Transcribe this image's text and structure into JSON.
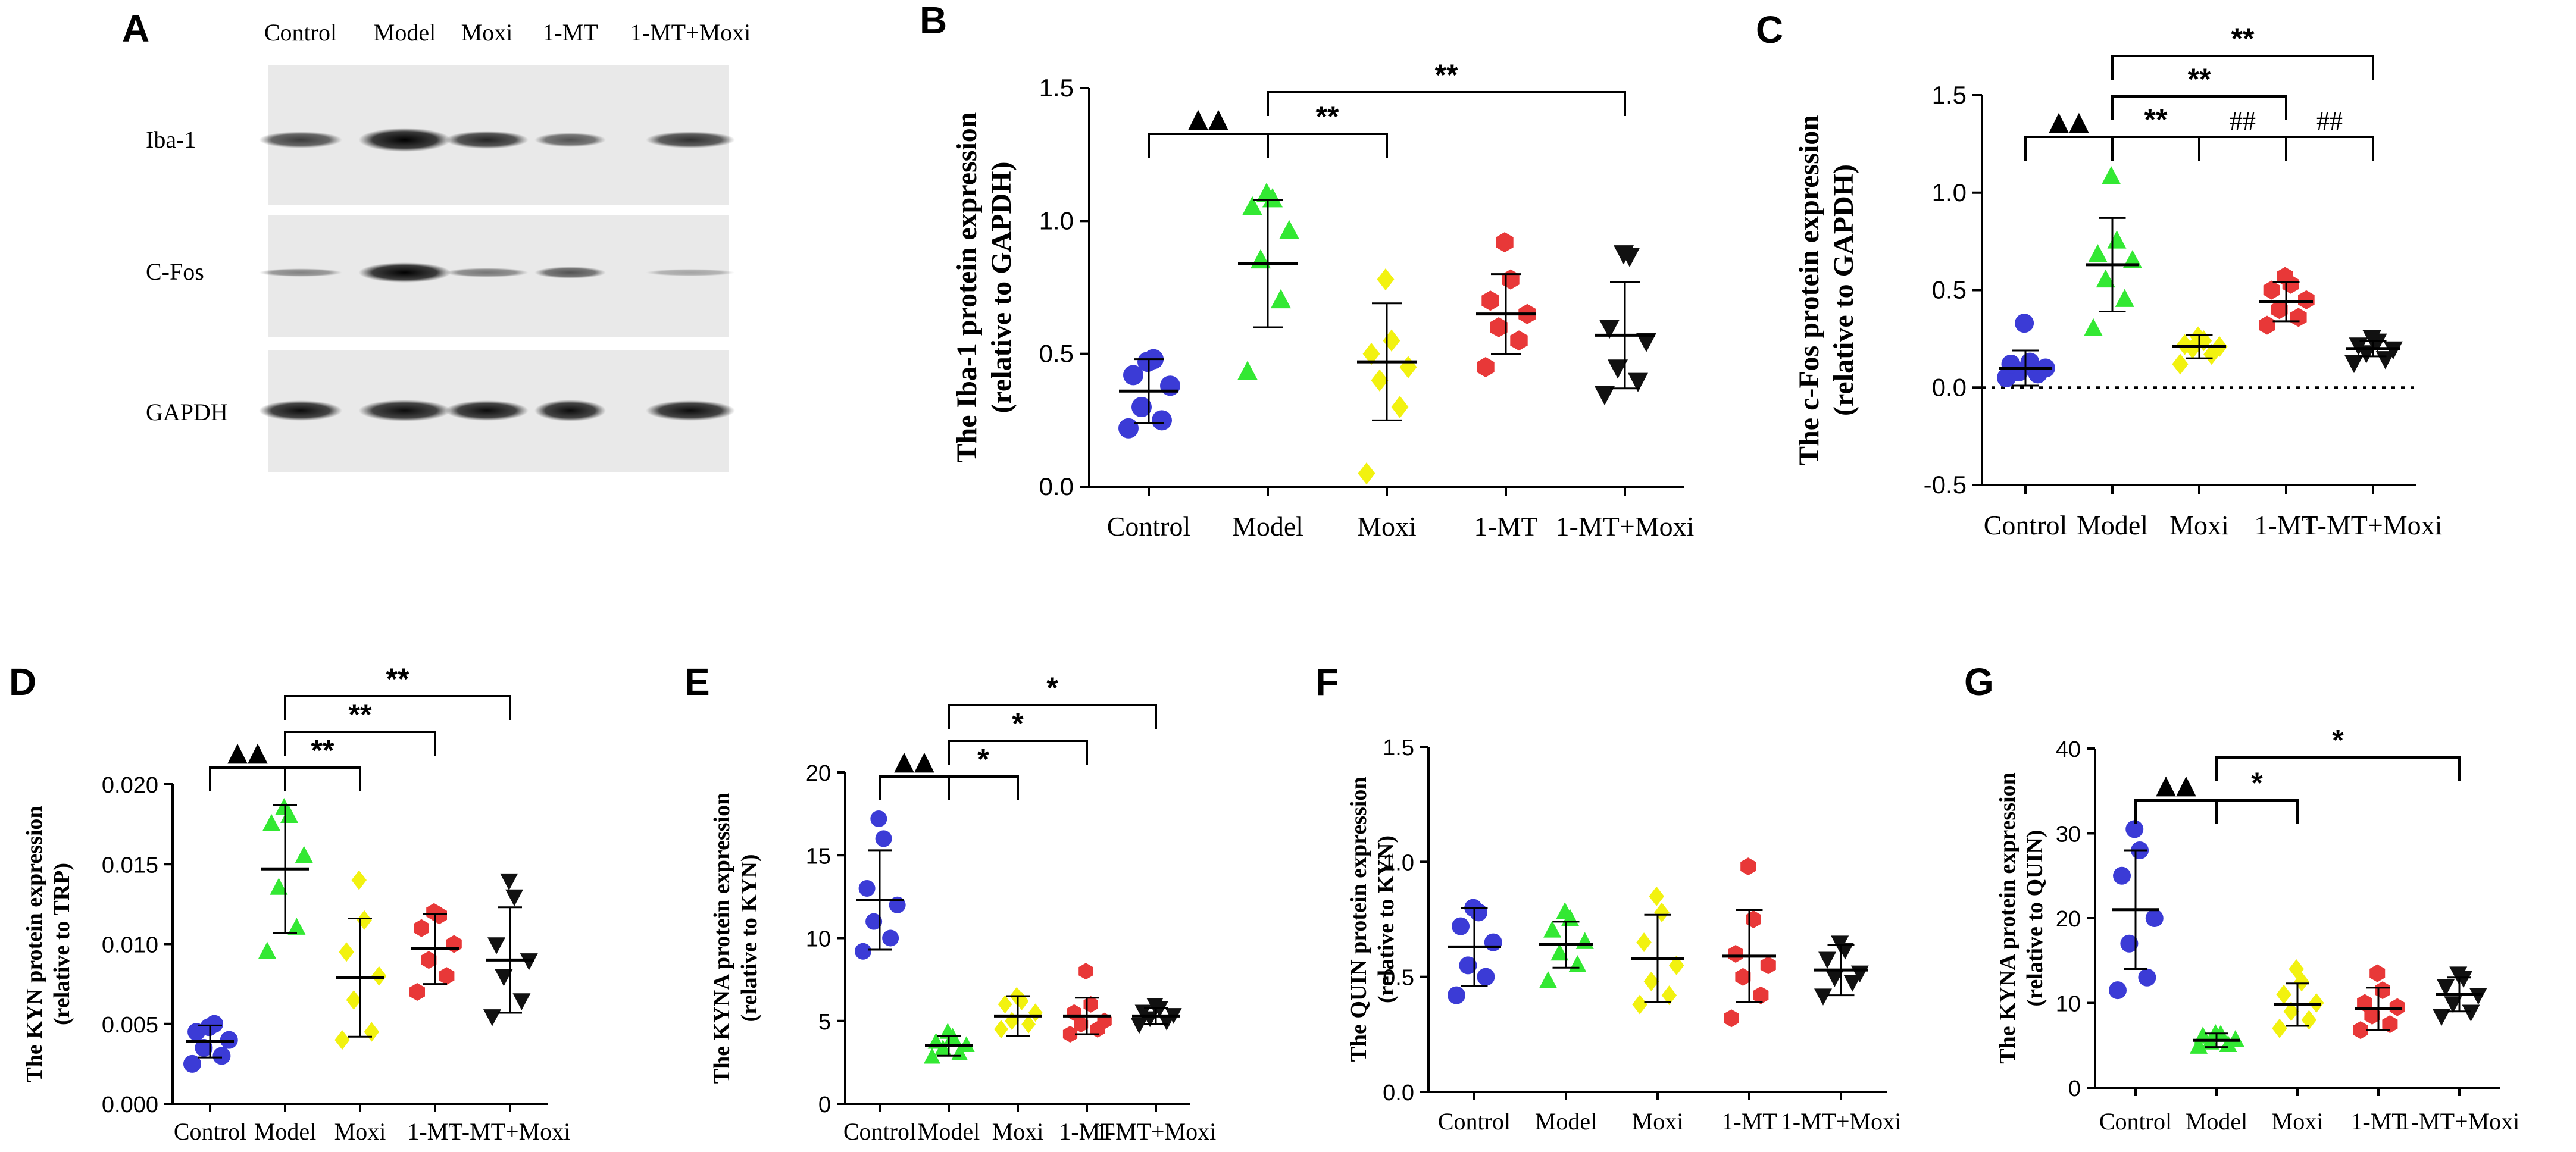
{
  "colors": {
    "Control": "#3b3bd6",
    "Model": "#33e833",
    "Moxi": "#f2f20f",
    "1-MT": "#e83838",
    "1-MT+Moxi": "#111111"
  },
  "markers": {
    "Control": "circle",
    "Model": "triangle-up",
    "Moxi": "diamond",
    "1-MT": "hexagon",
    "1-MT+Moxi": "triangle-down"
  },
  "panelA": {
    "label": "A",
    "lanes": [
      "Control",
      "Model",
      "Moxi",
      "1-MT",
      "1-MT+Moxi"
    ],
    "rows": [
      "Iba-1",
      "C-Fos",
      "GAPDH"
    ]
  },
  "chart_data": [
    {
      "id": "B",
      "type": "scatter",
      "label": "B",
      "title": "",
      "ylabel": [
        "The Iba-1 protein expression",
        "(relative to GAPDH)"
      ],
      "categories": [
        "Control",
        "Model",
        "Moxi",
        "1-MT",
        "1-MT+Moxi"
      ],
      "ylim": [
        0,
        1.5
      ],
      "yticks": [
        0.0,
        0.5,
        1.0,
        1.5
      ],
      "ytick_labels": [
        "0.0",
        "0.5",
        "1.0",
        "1.5"
      ],
      "dotted_zero": false,
      "means": [
        0.36,
        0.84,
        0.47,
        0.65,
        0.57
      ],
      "sd": [
        0.12,
        0.24,
        0.22,
        0.15,
        0.2
      ],
      "points": [
        [
          0.22,
          0.25,
          0.3,
          0.38,
          0.42,
          0.48,
          0.47
        ],
        [
          0.43,
          0.7,
          0.85,
          0.96,
          1.05,
          1.08,
          1.1
        ],
        [
          0.05,
          0.3,
          0.4,
          0.45,
          0.5,
          0.55,
          0.78
        ],
        [
          0.45,
          0.55,
          0.6,
          0.65,
          0.7,
          0.78,
          0.92
        ],
        [
          0.35,
          0.4,
          0.45,
          0.55,
          0.6,
          0.87,
          0.88
        ]
      ],
      "annotations": [
        {
          "from": 0,
          "to": 1,
          "level": 0,
          "text": "▲▲"
        },
        {
          "from": 1,
          "to": 2,
          "level": 0,
          "text": "**"
        },
        {
          "from": 1,
          "to": 4,
          "level": 1,
          "text": "**"
        }
      ]
    },
    {
      "id": "C",
      "type": "scatter",
      "label": "C",
      "title": "",
      "ylabel": [
        "The c-Fos protein expression",
        "(relative to GAPDH)"
      ],
      "categories": [
        "Control",
        "Model",
        "Moxi",
        "1-MT",
        "1-MT+Moxi"
      ],
      "ylim": [
        -0.5,
        1.5
      ],
      "yticks": [
        -0.5,
        0.0,
        0.5,
        1.0,
        1.5
      ],
      "ytick_labels": [
        "-0.5",
        "0.0",
        "0.5",
        "1.0",
        "1.5"
      ],
      "dotted_zero": true,
      "means": [
        0.1,
        0.63,
        0.21,
        0.44,
        0.2
      ],
      "sd": [
        0.09,
        0.24,
        0.06,
        0.1,
        0.04
      ],
      "points": [
        [
          0.05,
          0.07,
          0.08,
          0.1,
          0.12,
          0.13,
          0.33
        ],
        [
          0.3,
          0.45,
          0.55,
          0.65,
          0.68,
          0.75,
          1.08
        ],
        [
          0.12,
          0.17,
          0.2,
          0.21,
          0.22,
          0.24,
          0.26
        ],
        [
          0.32,
          0.36,
          0.4,
          0.45,
          0.5,
          0.53,
          0.57
        ],
        [
          0.13,
          0.15,
          0.18,
          0.2,
          0.22,
          0.24,
          0.26
        ]
      ],
      "annotations": [
        {
          "from": 0,
          "to": 1,
          "level": 0,
          "text": "▲▲"
        },
        {
          "from": 1,
          "to": 2,
          "level": 0,
          "text": "**"
        },
        {
          "from": 2,
          "to": 3,
          "level": 0,
          "text": "##"
        },
        {
          "from": 3,
          "to": 4,
          "level": 0,
          "text": "##"
        },
        {
          "from": 1,
          "to": 3,
          "level": 1,
          "text": "**"
        },
        {
          "from": 1,
          "to": 4,
          "level": 2,
          "text": "**"
        }
      ]
    },
    {
      "id": "D",
      "type": "scatter",
      "label": "D",
      "title": "",
      "ylabel": [
        "The KYN protein expression",
        "(relative to TRP)"
      ],
      "categories": [
        "Control",
        "Model",
        "Moxi",
        "1-MT",
        "1-MT+Moxi"
      ],
      "ylim": [
        0,
        0.02
      ],
      "yticks": [
        0,
        0.005,
        0.01,
        0.015,
        0.02
      ],
      "ytick_labels": [
        "0.000",
        "0.005",
        "0.010",
        "0.015",
        "0.020"
      ],
      "dotted_zero": false,
      "means": [
        0.0039,
        0.0147,
        0.0079,
        0.0097,
        0.009
      ],
      "sd": [
        0.001,
        0.004,
        0.0037,
        0.0022,
        0.0033
      ],
      "points": [
        [
          0.0025,
          0.003,
          0.0035,
          0.004,
          0.0045,
          0.005,
          0.0048
        ],
        [
          0.0095,
          0.011,
          0.0135,
          0.0155,
          0.0175,
          0.018,
          0.0185
        ],
        [
          0.004,
          0.0045,
          0.0065,
          0.008,
          0.0095,
          0.0115,
          0.014
        ],
        [
          0.007,
          0.008,
          0.009,
          0.01,
          0.011,
          0.0118,
          0.012
        ],
        [
          0.0055,
          0.0065,
          0.008,
          0.009,
          0.01,
          0.013,
          0.014
        ]
      ],
      "annotations": [
        {
          "from": 0,
          "to": 1,
          "level": 0,
          "text": "▲▲"
        },
        {
          "from": 1,
          "to": 2,
          "level": 0,
          "text": "**"
        },
        {
          "from": 1,
          "to": 3,
          "level": 1,
          "text": "**"
        },
        {
          "from": 1,
          "to": 4,
          "level": 2,
          "text": "**"
        }
      ]
    },
    {
      "id": "E",
      "type": "scatter",
      "label": "E",
      "title": "",
      "ylabel": [
        "The KYNA protein expression",
        "(relative to KYN)"
      ],
      "categories": [
        "Control",
        "Model",
        "Moxi",
        "1-MT",
        "1-MT+Moxi"
      ],
      "ylim": [
        0,
        20
      ],
      "yticks": [
        0,
        5,
        10,
        15,
        20
      ],
      "ytick_labels": [
        "0",
        "5",
        "10",
        "15",
        "20"
      ],
      "dotted_zero": false,
      "means": [
        12.3,
        3.5,
        5.3,
        5.3,
        5.3
      ],
      "sd": [
        3.0,
        0.6,
        1.2,
        1.1,
        0.5
      ],
      "points": [
        [
          9.2,
          10.0,
          11.0,
          12.0,
          13.0,
          16.0,
          17.2
        ],
        [
          2.8,
          3.0,
          3.3,
          3.5,
          3.7,
          4.0,
          4.3
        ],
        [
          4.5,
          4.8,
          5.0,
          5.5,
          6.0,
          6.2,
          6.5
        ],
        [
          4.2,
          4.5,
          4.8,
          5.0,
          5.5,
          6.0,
          8.0
        ],
        [
          4.8,
          5.0,
          5.2,
          5.4,
          5.6,
          5.8,
          6.0
        ]
      ],
      "annotations": [
        {
          "from": 0,
          "to": 1,
          "level": 0,
          "text": "▲▲"
        },
        {
          "from": 1,
          "to": 2,
          "level": 0,
          "text": "*"
        },
        {
          "from": 1,
          "to": 3,
          "level": 1,
          "text": "*"
        },
        {
          "from": 1,
          "to": 4,
          "level": 2,
          "text": "*"
        }
      ]
    },
    {
      "id": "F",
      "type": "scatter",
      "label": "F",
      "title": "",
      "ylabel": [
        "The QUIN protein expression",
        "(relative to KYN)"
      ],
      "categories": [
        "Control",
        "Model",
        "Moxi",
        "1-MT",
        "1-MT+Moxi"
      ],
      "ylim": [
        0,
        1.5
      ],
      "yticks": [
        0,
        0.5,
        1.0,
        1.5
      ],
      "ytick_labels": [
        "0.0",
        "0.5",
        "1.0",
        "1.5"
      ],
      "dotted_zero": false,
      "means": [
        0.63,
        0.64,
        0.58,
        0.59,
        0.53
      ],
      "sd": [
        0.17,
        0.1,
        0.19,
        0.2,
        0.11
      ],
      "points": [
        [
          0.42,
          0.5,
          0.55,
          0.65,
          0.72,
          0.78,
          0.8
        ],
        [
          0.48,
          0.55,
          0.6,
          0.65,
          0.7,
          0.75,
          0.78
        ],
        [
          0.38,
          0.42,
          0.48,
          0.55,
          0.65,
          0.78,
          0.85
        ],
        [
          0.32,
          0.42,
          0.5,
          0.55,
          0.6,
          0.75,
          0.98
        ],
        [
          0.42,
          0.48,
          0.5,
          0.52,
          0.58,
          0.62,
          0.65
        ]
      ],
      "annotations": []
    },
    {
      "id": "G",
      "type": "scatter",
      "label": "G",
      "title": "",
      "ylabel": [
        "The KYNA protein expression",
        "(relative to QUIN)"
      ],
      "categories": [
        "Control",
        "Model",
        "Moxi",
        "1-MT",
        "1-MT+Moxi"
      ],
      "ylim": [
        0,
        40
      ],
      "yticks": [
        0,
        10,
        20,
        30,
        40
      ],
      "ytick_labels": [
        "0",
        "10",
        "20",
        "30",
        "40"
      ],
      "dotted_zero": false,
      "means": [
        21.0,
        5.6,
        9.8,
        9.3,
        11.0
      ],
      "sd": [
        7.0,
        0.8,
        2.5,
        2.5,
        2.0
      ],
      "points": [
        [
          11.5,
          13.0,
          17.0,
          20.0,
          25.0,
          28.0,
          30.5
        ],
        [
          4.8,
          5.0,
          5.3,
          5.6,
          6.0,
          6.2,
          6.3
        ],
        [
          7.0,
          8.0,
          9.0,
          10.0,
          11.0,
          12.5,
          14.0
        ],
        [
          6.8,
          7.5,
          8.5,
          9.5,
          10.0,
          11.5,
          13.5
        ],
        [
          8.5,
          9.0,
          10.0,
          11.0,
          12.0,
          13.0,
          13.5
        ]
      ],
      "annotations": [
        {
          "from": 0,
          "to": 1,
          "level": 0,
          "text": "▲▲"
        },
        {
          "from": 1,
          "to": 2,
          "level": 0,
          "text": "*"
        },
        {
          "from": 1,
          "to": 4,
          "level": 1,
          "text": "*"
        }
      ]
    }
  ]
}
